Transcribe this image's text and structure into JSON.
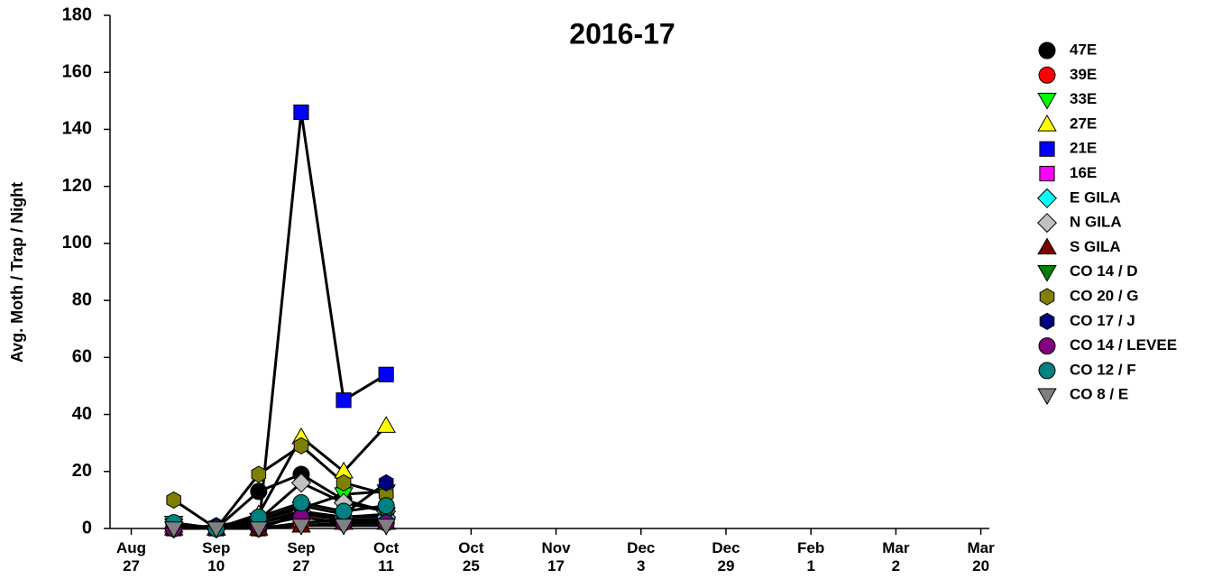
{
  "chart_data": {
    "type": "line",
    "title": "2016-17",
    "y_label": "Avg. Moth / Trap / Night",
    "x": [
      0.5,
      1,
      1.5,
      2,
      2.5,
      3
    ],
    "xlim": [
      -0.25,
      10.1
    ],
    "xticks": [
      {
        "value": 0,
        "label": "Aug\n27"
      },
      {
        "value": 1,
        "label": "Sep\n10"
      },
      {
        "value": 2,
        "label": "Sep\n27"
      },
      {
        "value": 3,
        "label": "Oct\n11"
      },
      {
        "value": 4,
        "label": "Oct\n25"
      },
      {
        "value": 5,
        "label": "Nov\n17"
      },
      {
        "value": 6,
        "label": "Dec\n3"
      },
      {
        "value": 7,
        "label": "Dec\n29"
      },
      {
        "value": 8,
        "label": "Feb\n1"
      },
      {
        "value": 9,
        "label": "Mar\n2"
      },
      {
        "value": 10,
        "label": "Mar\n20"
      }
    ],
    "ylim": [
      0,
      180
    ],
    "yticks": [
      0,
      20,
      40,
      60,
      80,
      100,
      120,
      140,
      160,
      180
    ],
    "line_color": "#000000",
    "series": [
      {
        "name": "47E",
        "color": "#000000",
        "marker": "circle",
        "values": [
          0,
          0,
          13,
          19,
          10,
          6
        ]
      },
      {
        "name": "39E",
        "color": "#ff0000",
        "marker": "circle",
        "values": [
          0,
          0,
          0,
          2,
          3,
          2
        ]
      },
      {
        "name": "33E",
        "color": "#00ff00",
        "marker": "triangle-down",
        "values": [
          2,
          0,
          3,
          7,
          12,
          13
        ]
      },
      {
        "name": "27E",
        "color": "#ffff00",
        "marker": "triangle-up",
        "values": [
          1,
          0,
          5,
          32,
          20,
          36
        ]
      },
      {
        "name": "21E",
        "color": "#0000ff",
        "marker": "square",
        "values": [
          0,
          0,
          0,
          146,
          45,
          54
        ]
      },
      {
        "name": "16E",
        "color": "#ff00ff",
        "marker": "square",
        "values": [
          0,
          0,
          0,
          5,
          3,
          3
        ]
      },
      {
        "name": "E GILA",
        "color": "#00ffff",
        "marker": "diamond",
        "values": [
          0,
          0,
          2,
          6,
          4,
          4
        ]
      },
      {
        "name": "N GILA",
        "color": "#c0c0c0",
        "marker": "diamond",
        "values": [
          0,
          0,
          3,
          16,
          9,
          6
        ]
      },
      {
        "name": "S GILA",
        "color": "#800000",
        "marker": "triangle-up",
        "values": [
          0,
          0,
          0,
          1,
          2,
          2
        ]
      },
      {
        "name": "CO 14 / D",
        "color": "#008000",
        "marker": "triangle-down",
        "values": [
          1,
          0,
          2,
          5,
          4,
          5
        ]
      },
      {
        "name": "CO 20 / G",
        "color": "#808000",
        "marker": "hexagon",
        "values": [
          10,
          0,
          19,
          29,
          16,
          12
        ]
      },
      {
        "name": "CO 17 / J",
        "color": "#000080",
        "marker": "hexagon",
        "values": [
          0,
          1,
          3,
          8,
          5,
          16
        ]
      },
      {
        "name": "CO 14 / LEVEE",
        "color": "#800080",
        "marker": "circle",
        "values": [
          0,
          0,
          1,
          4,
          2,
          2
        ]
      },
      {
        "name": "CO 12 / F",
        "color": "#008080",
        "marker": "circle",
        "values": [
          2,
          0,
          4,
          9,
          6,
          8
        ]
      },
      {
        "name": "CO 8 / E",
        "color": "#808080",
        "marker": "triangle-down",
        "values": [
          0,
          0,
          0,
          1,
          1,
          1
        ]
      }
    ]
  }
}
